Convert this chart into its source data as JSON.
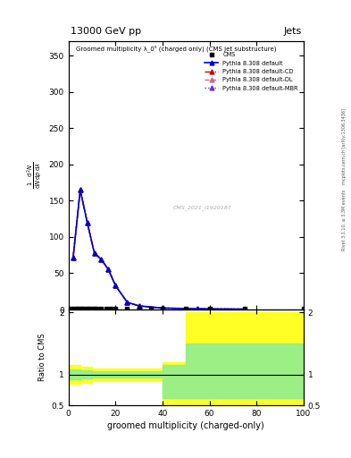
{
  "title_top": "13000 GeV pp",
  "title_right": "Jets",
  "xlabel": "groomed multiplicity (charged-only)",
  "watermark": "CMS_2021_I1920187",
  "xmin": 0,
  "xmax": 100,
  "ymin": 0,
  "ymax": 370,
  "ratio_ymin": 0.5,
  "ratio_ymax": 2.05,
  "pythia_x": [
    2,
    5,
    8,
    11,
    14,
    17,
    20,
    25,
    30,
    40,
    55,
    75
  ],
  "pythia_default_y": [
    72,
    165,
    120,
    78,
    69,
    55,
    33,
    10,
    5,
    2,
    1,
    0.5
  ],
  "pythia_cd_y": [
    72,
    165,
    120,
    78,
    69,
    55,
    33,
    10,
    5,
    2,
    1,
    0.5
  ],
  "pythia_dl_y": [
    72,
    165,
    120,
    78,
    69,
    55,
    33,
    10,
    5,
    2,
    1,
    0.5
  ],
  "pythia_mbr_y": [
    72,
    165,
    120,
    78,
    69,
    55,
    33,
    10,
    5,
    2,
    1,
    0.5
  ],
  "color_default": "#0000cc",
  "color_cd": "#cc0000",
  "color_dl": "#cc6688",
  "color_mbr": "#6633cc",
  "cms_xvals": [
    1,
    2,
    3,
    4,
    5,
    6,
    7,
    8,
    9,
    10,
    11,
    12,
    14,
    16,
    18,
    20,
    25,
    30,
    35,
    40,
    50,
    60,
    75,
    100
  ],
  "cms_yvals": [
    1,
    1,
    1,
    1,
    1,
    1,
    1,
    1,
    1,
    1,
    1,
    1,
    1,
    1,
    1,
    1,
    1,
    1,
    1,
    1,
    1,
    1,
    1,
    1
  ],
  "right_label1": "Rivet 3.1.10, ≥ 3.3M events",
  "right_label2": "mcplots.cern.ch [arXiv:1306.3436]",
  "yticks": [
    0,
    50,
    100,
    150,
    200,
    250,
    300,
    350
  ],
  "xticks": [
    0,
    20,
    40,
    60,
    80,
    100
  ],
  "ratio_yticks": [
    0.5,
    1.0,
    2.0
  ],
  "ratio_ytick_labels": [
    "0.5",
    "1",
    "2"
  ],
  "yellow_x": [
    0,
    5,
    10,
    40,
    50,
    100
  ],
  "yellow_lo": [
    0.85,
    0.88,
    0.9,
    0.5,
    0.5,
    0.5
  ],
  "yellow_hi": [
    1.15,
    1.12,
    1.1,
    1.2,
    2.0,
    2.0
  ],
  "green_x": [
    0,
    5,
    10,
    40,
    50,
    100
  ],
  "green_lo": [
    0.92,
    0.94,
    0.95,
    0.62,
    0.62,
    0.62
  ],
  "green_hi": [
    1.08,
    1.06,
    1.05,
    1.15,
    1.5,
    1.5
  ]
}
